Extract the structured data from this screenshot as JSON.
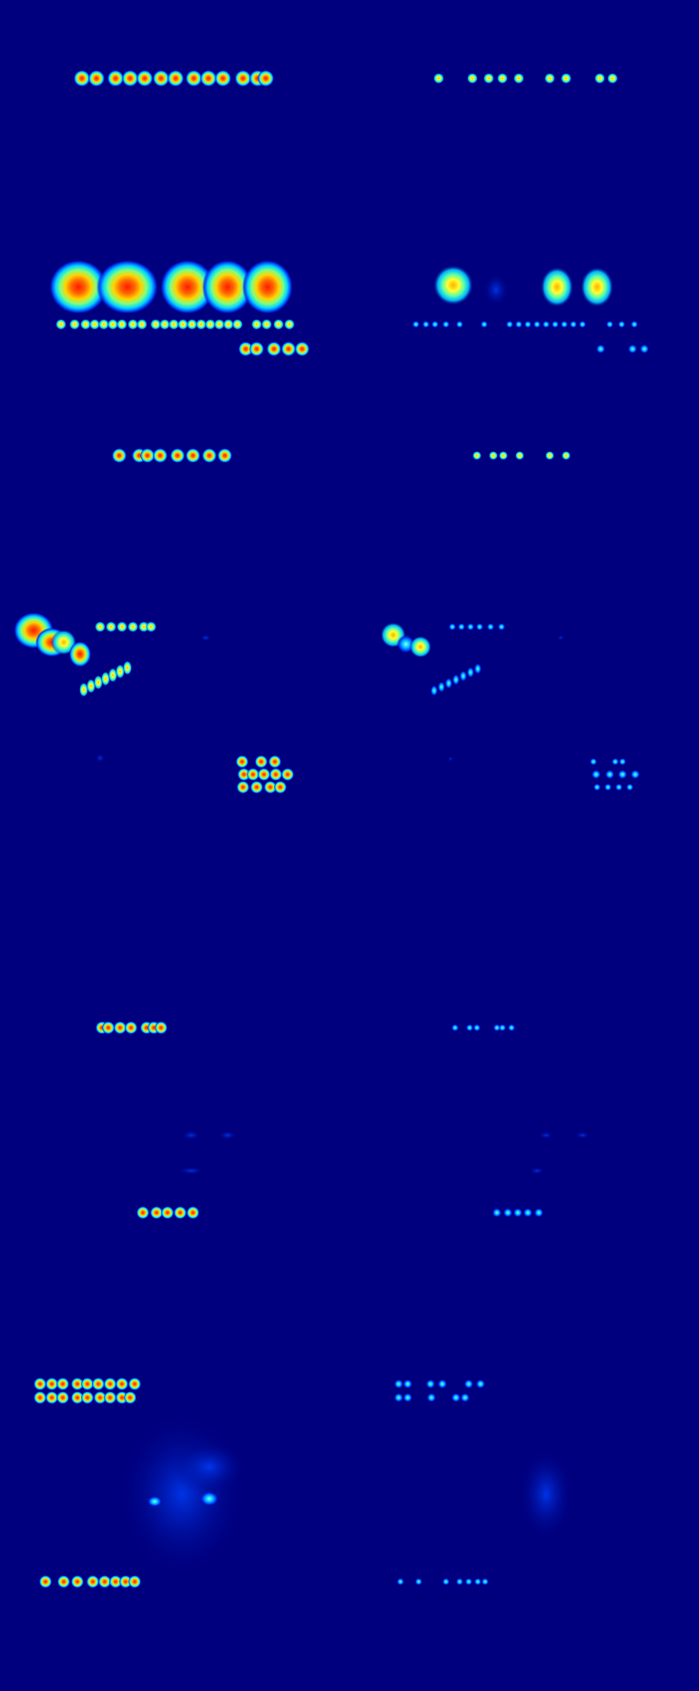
{
  "figure": {
    "background_color": "#00007f",
    "colormap": "jet",
    "colormap_stops": [
      "#00007f",
      "#0000ff",
      "#00bfff",
      "#40ffbf",
      "#ffff00",
      "#ff7f00",
      "#ff0000"
    ],
    "description_type": "attention heatmap comparison grid",
    "columns": 2,
    "rows": 8
  }
}
